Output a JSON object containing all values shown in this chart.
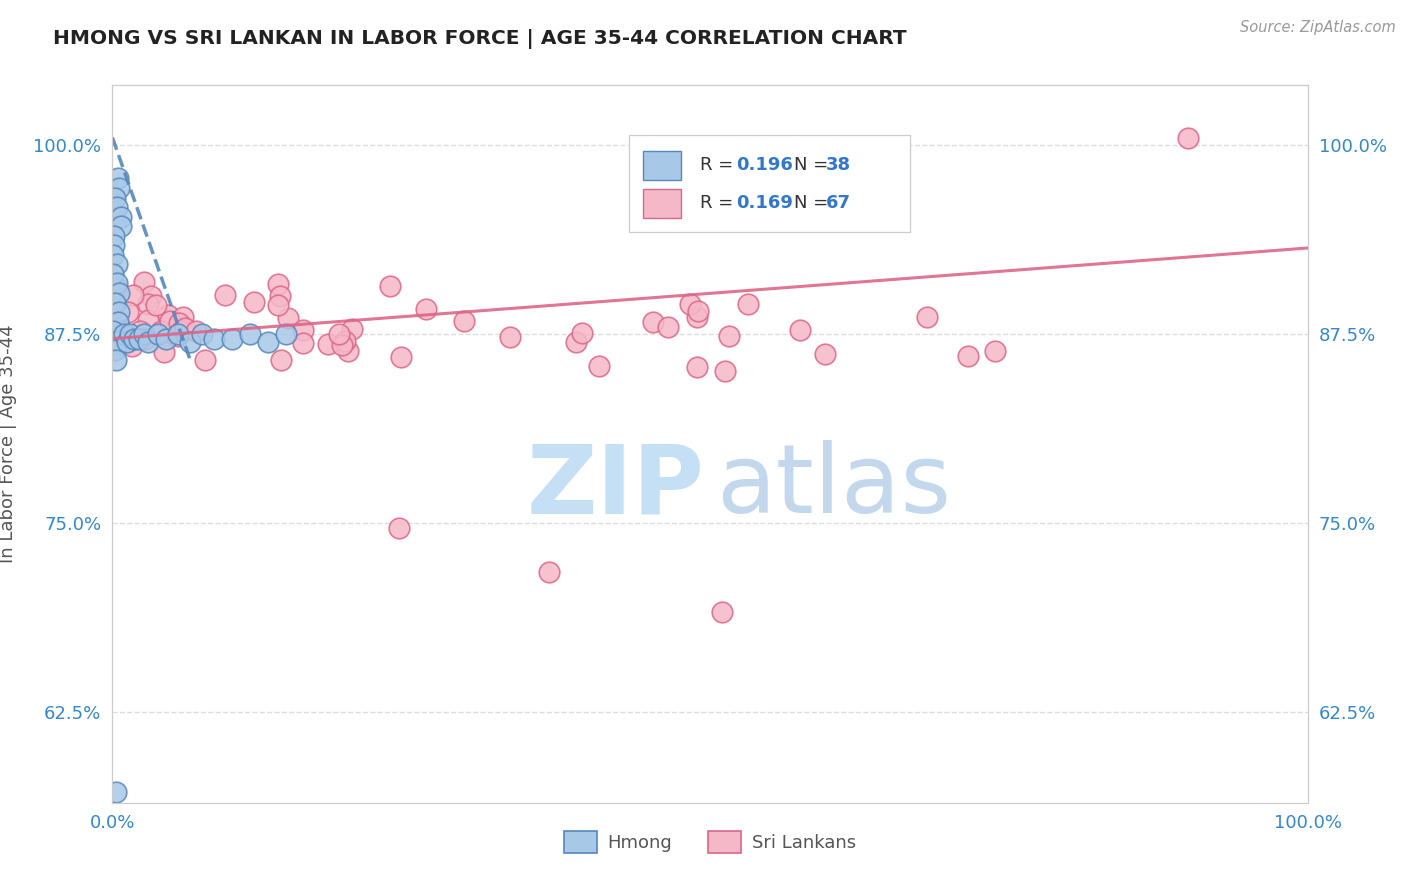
{
  "title": "HMONG VS SRI LANKAN IN LABOR FORCE | AGE 35-44 CORRELATION CHART",
  "source_text": "Source: ZipAtlas.com",
  "ylabel": "In Labor Force | Age 35-44",
  "hmong_label": "Hmong",
  "srilanka_label": "Sri Lankans",
  "hmong_face": "#a8c8e8",
  "hmong_edge": "#5588bb",
  "srilanka_face": "#f5b8c8",
  "srilanka_edge": "#dd6688",
  "hmong_line_color": "#5588bb",
  "srilanka_line_color": "#dd6688",
  "hmong_R": 0.196,
  "hmong_N": 38,
  "srilanka_R": 0.169,
  "srilanka_N": 67,
  "R_color": "#3377cc",
  "N_color": "#3377cc",
  "title_color": "#222222",
  "axis_label_color": "#555555",
  "tick_color": "#3388cc",
  "grid_color": "#dddddd",
  "background": "#ffffff",
  "source_color": "#999999",
  "watermark_zip_color": "#c5dff5",
  "watermark_atlas_color": "#b0cce8",
  "xlim": [
    0.0,
    1.0
  ],
  "ylim": [
    0.565,
    1.04
  ],
  "ytick_values": [
    0.625,
    0.75,
    0.875,
    1.0
  ],
  "ytick_labels": [
    "62.5%",
    "75.0%",
    "87.5%",
    "100.0%"
  ],
  "xtick_values": [
    0.0,
    1.0
  ],
  "xtick_labels": [
    "0.0%",
    "100.0%"
  ],
  "hmong_trendline_x": [
    0.0,
    0.065
  ],
  "hmong_trendline_y": [
    1.005,
    0.858
  ],
  "srilanka_trendline_x": [
    0.0,
    1.0
  ],
  "srilanka_trendline_y": [
    0.872,
    0.932
  ]
}
